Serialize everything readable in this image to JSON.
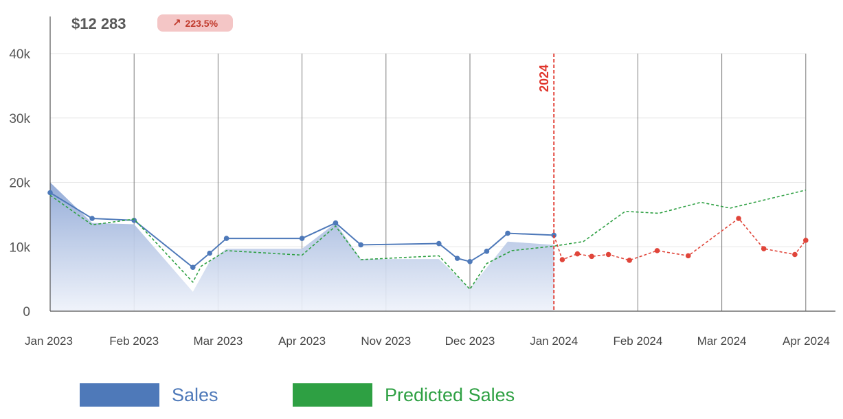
{
  "header": {
    "total_value": "$12 283",
    "change_pct": "223.5%",
    "change_icon": "arrow-up-right-icon",
    "change_color": "#c0392b"
  },
  "legend": {
    "sales_label": "Sales",
    "predicted_label": "Predicted Sales"
  },
  "chart_data": {
    "type": "line",
    "x_tick_labels": [
      "Jan 2023",
      "Feb 2023",
      "Mar 2023",
      "Apr 2023",
      "Nov 2023",
      "Dec 2023",
      "Jan 2024",
      "Feb 2024",
      "Mar 2024",
      "Apr 2024"
    ],
    "y_tick_labels": [
      "0",
      "10k",
      "20k",
      "30k",
      "40k"
    ],
    "ylim": [
      0,
      40000
    ],
    "grid": {
      "vertical": true,
      "horizontal": true
    },
    "divider": {
      "label": "2024",
      "at": "Jan 2024",
      "color": "#e0352b"
    },
    "legend_position": "bottom",
    "colors": {
      "sales": "#4e79b9",
      "predicted": "#2ea043",
      "forecast": "#e0453a"
    },
    "series": [
      {
        "name": "Sales",
        "style": "solid line with markers",
        "points": [
          [
            0,
            18400
          ],
          [
            0.5,
            14400
          ],
          [
            1.0,
            14100
          ],
          [
            1.7,
            6800
          ],
          [
            1.9,
            9000
          ],
          [
            2.1,
            11300
          ],
          [
            3.0,
            11300
          ],
          [
            3.4,
            13700
          ],
          [
            3.7,
            10300
          ],
          [
            4.63,
            10500
          ],
          [
            4.85,
            8200
          ],
          [
            5.0,
            7700
          ],
          [
            5.2,
            9300
          ],
          [
            5.45,
            12100
          ],
          [
            6.0,
            11800
          ]
        ]
      },
      {
        "name": "Predicted Sales",
        "style": "dashed line",
        "points": [
          [
            0,
            18000
          ],
          [
            0.5,
            13400
          ],
          [
            1.0,
            14300
          ],
          [
            1.7,
            4500
          ],
          [
            1.8,
            7000
          ],
          [
            2.1,
            9400
          ],
          [
            3.0,
            8700
          ],
          [
            3.4,
            13200
          ],
          [
            3.7,
            8000
          ],
          [
            4.63,
            8600
          ],
          [
            5.0,
            3400
          ],
          [
            5.2,
            7400
          ],
          [
            5.5,
            9400
          ],
          [
            6.0,
            10100
          ],
          [
            6.35,
            10800
          ],
          [
            6.85,
            15500
          ],
          [
            7.25,
            15200
          ],
          [
            7.75,
            16900
          ],
          [
            8.1,
            16000
          ],
          [
            9.0,
            18800
          ]
        ]
      },
      {
        "name": "",
        "style": "dashed line with markers (forecast)",
        "points": [
          [
            6.0,
            11800
          ],
          [
            6.1,
            8000
          ],
          [
            6.28,
            8900
          ],
          [
            6.45,
            8500
          ],
          [
            6.65,
            8800
          ],
          [
            6.9,
            7900
          ],
          [
            7.23,
            9400
          ],
          [
            7.6,
            8600
          ],
          [
            8.2,
            14400
          ],
          [
            8.5,
            9700
          ],
          [
            8.87,
            8800
          ],
          [
            9.0,
            11000
          ]
        ]
      }
    ],
    "area": {
      "name": "Sales",
      "points": [
        [
          0,
          20000
        ],
        [
          0.5,
          13700
        ],
        [
          1.0,
          13500
        ],
        [
          1.7,
          3000
        ],
        [
          1.9,
          7700
        ],
        [
          2.1,
          9700
        ],
        [
          3.0,
          9700
        ],
        [
          3.4,
          13700
        ],
        [
          3.7,
          8100
        ],
        [
          4.63,
          8100
        ],
        [
          5.0,
          3500
        ],
        [
          5.45,
          10800
        ],
        [
          6.0,
          10300
        ]
      ]
    }
  }
}
